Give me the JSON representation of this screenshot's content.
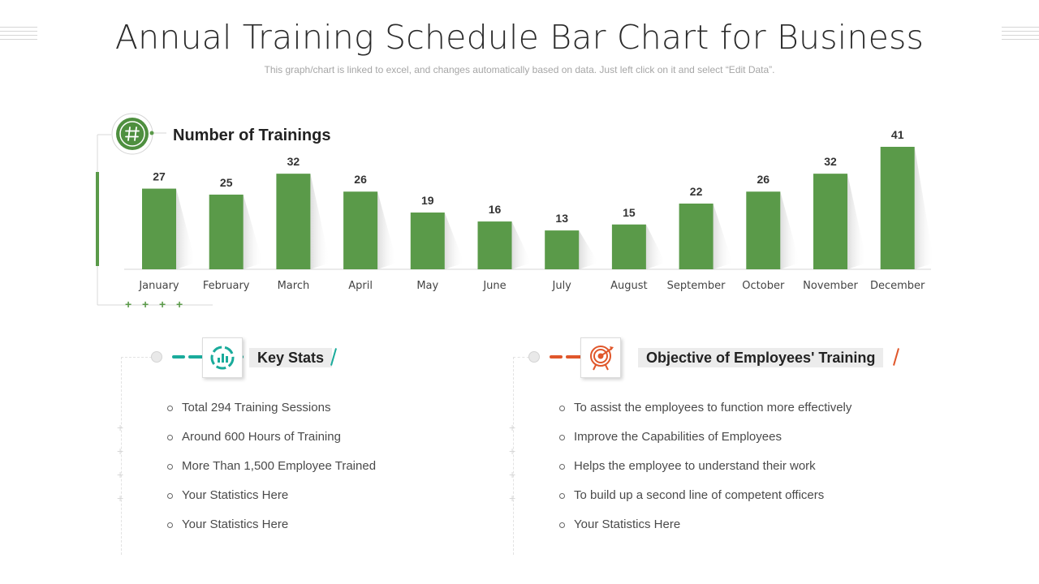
{
  "header": {
    "title": "Annual Training Schedule Bar Chart for Business",
    "subtitle": "This graph/chart is linked to excel, and changes automatically based on data. Just left click on it and select “Edit Data”."
  },
  "chart_data": {
    "type": "bar",
    "title": "Number of Trainings",
    "categories": [
      "January",
      "February",
      "March",
      "April",
      "May",
      "June",
      "July",
      "August",
      "September",
      "October",
      "November",
      "December"
    ],
    "values": [
      27,
      25,
      32,
      26,
      19,
      16,
      13,
      15,
      22,
      26,
      32,
      41
    ],
    "data_labels": [
      "27",
      "25",
      "32",
      "26",
      "19",
      "16",
      "13",
      "15",
      "22",
      "26",
      "32",
      "41"
    ],
    "ylim": [
      0,
      41
    ],
    "grid": false,
    "bar_color": "#5a9a49",
    "icon": "hashtag-icon"
  },
  "key_stats": {
    "title": "Key Stats",
    "icon": "chart-gauge-icon",
    "accent": "#1aab9b",
    "items": [
      "Total 294 Training Sessions",
      "Around 600 Hours of Training",
      "More Than 1,500 Employee Trained",
      "Your Statistics Here",
      "Your Statistics Here"
    ]
  },
  "objective": {
    "title": "Objective of Employees' Training",
    "icon": "target-icon",
    "accent": "#e0572b",
    "items": [
      "To assist the employees to function more effectively",
      "Improve the Capabilities of Employees",
      "Helps the employee to understand their work",
      "To build up a second line of competent officers",
      "Your Statistics Here"
    ]
  }
}
